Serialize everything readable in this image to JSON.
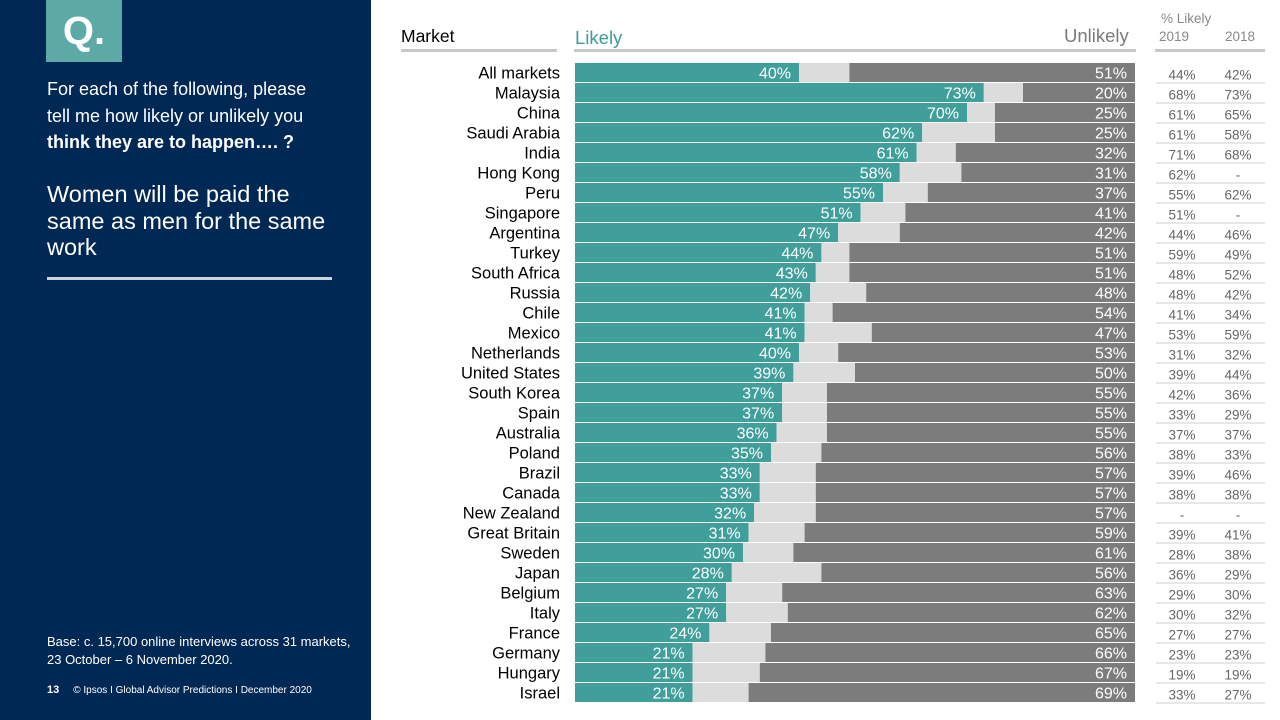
{
  "panel": {
    "q_label": "Q.",
    "prompt_line1": "For each of the following, please",
    "prompt_line2": "tell me how likely or unlikely you",
    "prompt_bold": "think they are to happen…. ?",
    "statement": "Women will be paid the same as men for the same work",
    "base_note": "Base: c. 15,700 online interviews across 31 markets,  23 October – 6 November 2020.",
    "page_number": "13",
    "footer_text": "© Ipsos I Global Advisor Predictions I December 2020"
  },
  "colors": {
    "likely": "#419f9b",
    "neutral": "#dcdcdc",
    "unlikely": "#7c7c7c",
    "panel_bg": "#002855",
    "q_box": "#5ca9a6"
  },
  "chart_data": {
    "type": "bar",
    "orientation": "horizontal",
    "stacked": true,
    "header_market": "Market",
    "header_likely": "Likely",
    "header_unlikely": "Unlikely",
    "header_history": "% Likely",
    "year_columns": [
      "2019",
      "2018"
    ],
    "categories": [
      "All markets",
      "Malaysia",
      "China",
      "Saudi Arabia",
      "India",
      "Hong Kong",
      "Peru",
      "Singapore",
      "Argentina",
      "Turkey",
      "South Africa",
      "Russia",
      "Chile",
      "Mexico",
      "Netherlands",
      "United States",
      "South Korea",
      "Spain",
      "Australia",
      "Poland",
      "Brazil",
      "Canada",
      "New Zealand",
      "Great Britain",
      "Sweden",
      "Japan",
      "Belgium",
      "Italy",
      "France",
      "Germany",
      "Hungary",
      "Israel"
    ],
    "likely": [
      40,
      73,
      70,
      62,
      61,
      58,
      55,
      51,
      47,
      44,
      43,
      42,
      41,
      41,
      40,
      39,
      37,
      37,
      36,
      35,
      33,
      33,
      32,
      31,
      30,
      28,
      27,
      27,
      24,
      21,
      21,
      21
    ],
    "unlikely": [
      51,
      20,
      25,
      25,
      32,
      31,
      37,
      41,
      42,
      51,
      51,
      48,
      54,
      47,
      53,
      50,
      55,
      55,
      55,
      56,
      57,
      57,
      57,
      59,
      61,
      56,
      63,
      62,
      65,
      66,
      67,
      69
    ],
    "likely_2019": [
      "44%",
      "68%",
      "61%",
      "61%",
      "71%",
      "62%",
      "55%",
      "51%",
      "44%",
      "59%",
      "48%",
      "48%",
      "41%",
      "53%",
      "31%",
      "39%",
      "42%",
      "33%",
      "37%",
      "38%",
      "39%",
      "38%",
      "-",
      "39%",
      "28%",
      "36%",
      "29%",
      "30%",
      "27%",
      "23%",
      "19%",
      "33%"
    ],
    "likely_2018": [
      "42%",
      "73%",
      "65%",
      "58%",
      "68%",
      "-",
      "62%",
      "-",
      "46%",
      "49%",
      "52%",
      "42%",
      "34%",
      "59%",
      "32%",
      "44%",
      "36%",
      "29%",
      "37%",
      "33%",
      "46%",
      "38%",
      "-",
      "41%",
      "38%",
      "29%",
      "30%",
      "32%",
      "27%",
      "23%",
      "19%",
      "27%"
    ],
    "xlim": [
      0,
      100
    ]
  }
}
